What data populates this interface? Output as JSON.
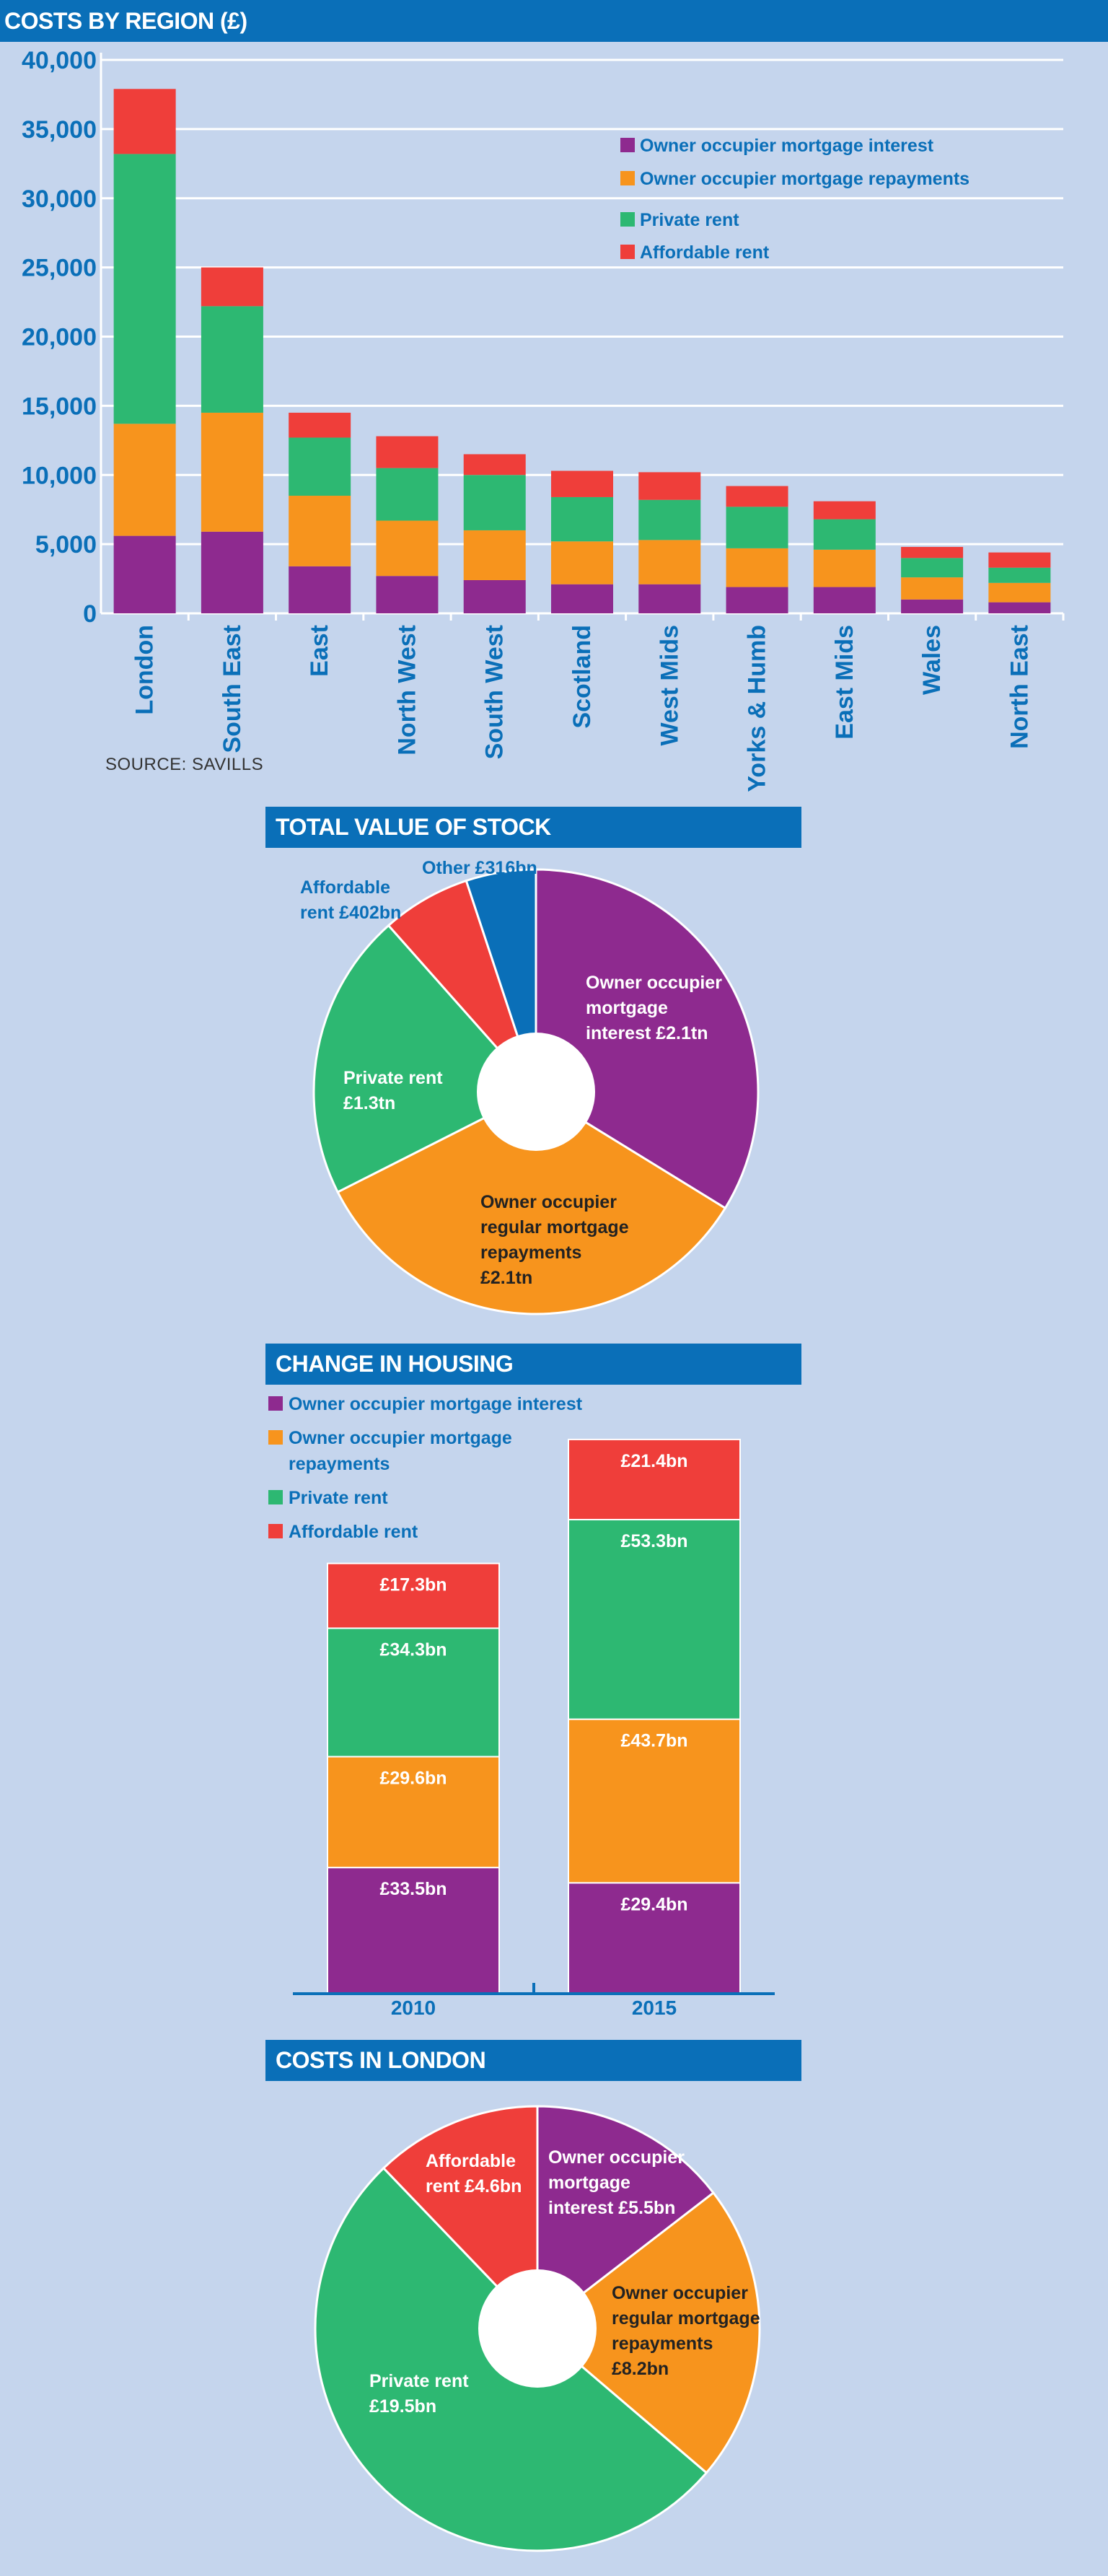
{
  "colors": {
    "purple": "#8e2a8f",
    "orange": "#f7941d",
    "green": "#2db872",
    "red": "#ef3e3a",
    "blue": "#0a6fb8",
    "background": "#c5d5ed"
  },
  "source": "SOURCE: SAVILLS",
  "chart_data": [
    {
      "type": "bar",
      "stacked": true,
      "title": "COSTS BY REGION (£)",
      "categories": [
        "London",
        "South East",
        "East",
        "North West",
        "South West",
        "Scotland",
        "West Mids",
        "Yorks & Humb",
        "East Mids",
        "Wales",
        "North East"
      ],
      "series": [
        {
          "name": "Owner occupier mortgage interest",
          "color": "#8e2a8f",
          "values": [
            5600,
            5900,
            3400,
            2700,
            2400,
            2100,
            2100,
            1900,
            1900,
            1000,
            800
          ]
        },
        {
          "name": "Owner occupier mortgage repayments",
          "color": "#f7941d",
          "values": [
            8100,
            8600,
            5100,
            4000,
            3600,
            3100,
            3200,
            2800,
            2700,
            1600,
            1400
          ]
        },
        {
          "name": "Private rent",
          "color": "#2db872",
          "values": [
            19500,
            7700,
            4200,
            3800,
            4000,
            3200,
            2900,
            3000,
            2200,
            1400,
            1100
          ]
        },
        {
          "name": "Affordable rent",
          "color": "#ef3e3a",
          "values": [
            4700,
            2800,
            1800,
            2300,
            1500,
            1900,
            2000,
            1500,
            1300,
            800,
            1100
          ]
        }
      ],
      "yticks": [
        "0",
        "5,000",
        "10,000",
        "15,000",
        "20,000",
        "25,000",
        "30,000",
        "35,000",
        "40,000"
      ],
      "ylim": [
        0,
        40000
      ],
      "grid": true,
      "legend": "top-right"
    },
    {
      "type": "pie",
      "donut": true,
      "title": "TOTAL VALUE OF STOCK",
      "slices": [
        {
          "label_lines": [
            "Owner occupier",
            "mortgage",
            "interest £2.1tn"
          ],
          "value": 2100,
          "color": "#8e2a8f",
          "text_color": "#ffffff"
        },
        {
          "label_lines": [
            "Owner occupier",
            "regular mortgage",
            "repayments",
            "£2.1tn"
          ],
          "value": 2100,
          "color": "#f7941d",
          "text_color": "#222222"
        },
        {
          "label_lines": [
            "Private rent",
            "£1.3tn"
          ],
          "value": 1300,
          "color": "#2db872",
          "text_color": "#ffffff"
        },
        {
          "label_lines": [
            "Affordable",
            "rent £402bn"
          ],
          "value": 402,
          "color": "#ef3e3a",
          "text_color": "#0a6fb8"
        },
        {
          "label_lines": [
            "Other £316bn"
          ],
          "value": 316,
          "color": "#0a6fb8",
          "text_color": "#0a6fb8"
        }
      ]
    },
    {
      "type": "bar",
      "stacked": true,
      "title": "CHANGE IN HOUSING",
      "categories": [
        "2010",
        "2015"
      ],
      "series": [
        {
          "name": "Owner occupier mortgage interest",
          "color": "#8e2a8f",
          "values": [
            33.5,
            29.4
          ],
          "labels": [
            "£33.5bn",
            "£29.4bn"
          ]
        },
        {
          "name": "Owner occupier mortgage repayments",
          "color": "#f7941d",
          "values": [
            29.6,
            43.7
          ],
          "labels": [
            "£29.6bn",
            "£43.7bn"
          ]
        },
        {
          "name": "Private rent",
          "color": "#2db872",
          "values": [
            34.3,
            53.3
          ],
          "labels": [
            "£34.3bn",
            "£53.3bn"
          ]
        },
        {
          "name": "Affordable rent",
          "color": "#ef3e3a",
          "values": [
            17.3,
            21.4
          ],
          "labels": [
            "£17.3bn",
            "£21.4bn"
          ]
        }
      ],
      "legend_lines": [
        [
          "Owner occupier mortgage interest"
        ],
        [
          "Owner occupier mortgage",
          "repayments"
        ],
        [
          "Private rent"
        ],
        [
          "Affordable rent"
        ]
      ],
      "legend": "top-left"
    },
    {
      "type": "pie",
      "donut": true,
      "title": "COSTS IN LONDON",
      "slices": [
        {
          "label_lines": [
            "Owner occupier",
            "mortgage",
            "interest £5.5bn"
          ],
          "value": 5.5,
          "color": "#8e2a8f",
          "text_color": "#ffffff"
        },
        {
          "label_lines": [
            "Owner occupier",
            "regular mortgage",
            "repayments",
            "£8.2bn"
          ],
          "value": 8.2,
          "color": "#f7941d",
          "text_color": "#222222"
        },
        {
          "label_lines": [
            "Private rent",
            "£19.5bn"
          ],
          "value": 19.5,
          "color": "#2db872",
          "text_color": "#ffffff"
        },
        {
          "label_lines": [
            "Affordable",
            "rent £4.6bn"
          ],
          "value": 4.6,
          "color": "#ef3e3a",
          "text_color": "#ffffff"
        }
      ]
    }
  ]
}
